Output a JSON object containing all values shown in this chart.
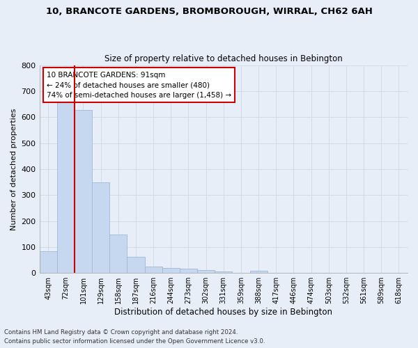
{
  "title1": "10, BRANCOTE GARDENS, BROMBOROUGH, WIRRAL, CH62 6AH",
  "title2": "Size of property relative to detached houses in Bebington",
  "xlabel": "Distribution of detached houses by size in Bebington",
  "ylabel": "Number of detached properties",
  "footnote1": "Contains HM Land Registry data © Crown copyright and database right 2024.",
  "footnote2": "Contains public sector information licensed under the Open Government Licence v3.0.",
  "bar_labels": [
    "43sqm",
    "72sqm",
    "101sqm",
    "129sqm",
    "158sqm",
    "187sqm",
    "216sqm",
    "244sqm",
    "273sqm",
    "302sqm",
    "331sqm",
    "359sqm",
    "388sqm",
    "417sqm",
    "446sqm",
    "474sqm",
    "503sqm",
    "532sqm",
    "561sqm",
    "589sqm",
    "618sqm"
  ],
  "bar_values": [
    83,
    660,
    628,
    348,
    148,
    62,
    25,
    20,
    17,
    11,
    6,
    0,
    8,
    0,
    0,
    0,
    0,
    0,
    0,
    0,
    0
  ],
  "bar_color": "#c5d8f0",
  "bar_edge_color": "#a0b8d8",
  "grid_color": "#d0dcea",
  "property_line_color": "#cc0000",
  "annotation_text": "10 BRANCOTE GARDENS: 91sqm\n← 24% of detached houses are smaller (480)\n74% of semi-detached houses are larger (1,458) →",
  "annotation_box_color": "#ffffff",
  "annotation_box_edgecolor": "#cc0000",
  "ylim": [
    0,
    800
  ],
  "yticks": [
    0,
    100,
    200,
    300,
    400,
    500,
    600,
    700,
    800
  ],
  "bg_color": "#e8eef8"
}
